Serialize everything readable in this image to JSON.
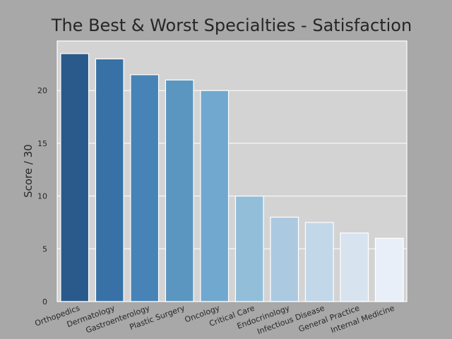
{
  "chart_data": {
    "type": "bar",
    "title": "The Best & Worst Specialties - Satisfaction",
    "xlabel": "",
    "ylabel": "Score / 30",
    "categories": [
      "Orthopedics",
      "Dermatology",
      "Gastroenterology",
      "Plastic Surgery",
      "Oncology",
      "Critical Care",
      "Endocrinology",
      "Infectious Disease",
      "General Practice",
      "Internal Medicine"
    ],
    "values": [
      23.5,
      23,
      21.5,
      21,
      20,
      10,
      8,
      7.5,
      6.5,
      6
    ],
    "ylim": [
      0,
      24.7
    ],
    "yticks": [
      "0",
      "5",
      "10",
      "15",
      "20"
    ],
    "ytick_values": [
      0,
      5,
      10,
      15,
      20
    ],
    "grid": true,
    "colors": [
      "#2a5a8c",
      "#3871a6",
      "#4783b6",
      "#5b96c1",
      "#71a8cf",
      "#93bed9",
      "#abcae0",
      "#c2d7e8",
      "#d8e3f0",
      "#e8eff8"
    ],
    "plot_bg": "#d3d3d3",
    "page_bg": "#a8a8a8"
  }
}
